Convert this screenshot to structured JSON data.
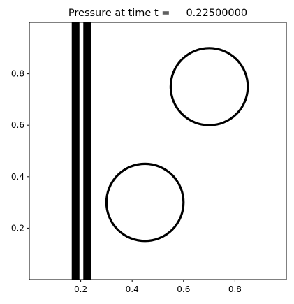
{
  "chart_data": {
    "type": "contour",
    "title": "Pressure at time t =     0.22500000",
    "xlabel": "",
    "ylabel": "",
    "xlim": [
      0.0,
      1.0
    ],
    "ylim": [
      0.0,
      1.0
    ],
    "grid": false,
    "legend": "none",
    "x_ticks": [
      0.2,
      0.4,
      0.6,
      0.8
    ],
    "x_tick_labels": [
      "0.2",
      "0.4",
      "0.6",
      "0.8"
    ],
    "y_ticks": [
      0.2,
      0.4,
      0.6,
      0.8
    ],
    "y_tick_labels": [
      "0.2",
      "0.4",
      "0.6",
      "0.8"
    ],
    "line_color": "#000000",
    "vertical_bands": [
      {
        "x_start": 0.165,
        "x_end": 0.195
      },
      {
        "x_start": 0.21,
        "x_end": 0.24
      }
    ],
    "circles": [
      {
        "cx": 0.7,
        "cy": 0.75,
        "r": 0.15
      },
      {
        "cx": 0.45,
        "cy": 0.3,
        "r": 0.15
      }
    ]
  }
}
